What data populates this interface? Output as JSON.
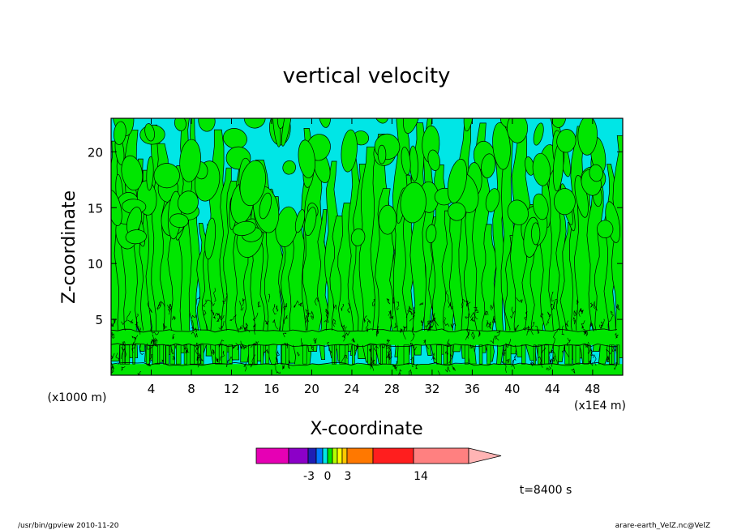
{
  "chart_data": {
    "type": "heatmap",
    "title": "vertical velocity",
    "xlabel": "X-coordinate",
    "ylabel": "Z-coordinate",
    "x_unit_left": "(x1000 m)",
    "x_unit_right": "(x1E4 m)",
    "xlim": [
      0,
      51
    ],
    "ylim": [
      0,
      23
    ],
    "x_ticks": [
      4,
      8,
      12,
      16,
      20,
      24,
      28,
      32,
      36,
      40,
      44,
      48
    ],
    "y_ticks": [
      5,
      10,
      15,
      20
    ],
    "x_tick_labels": [
      "4",
      "8",
      "12",
      "16",
      "20",
      "24",
      "28",
      "32",
      "36",
      "40",
      "44",
      "48"
    ],
    "y_tick_labels": [
      "5",
      "10",
      "15",
      "20"
    ],
    "contour_fill_colors": {
      "weak_negative": "#00e6e6",
      "weak_positive": "#00e600",
      "contour_line": "#000000"
    },
    "colorbar": {
      "colors": [
        "#e600b4",
        "#8c00c8",
        "#1e1eb4",
        "#0078ff",
        "#00e6e6",
        "#00e600",
        "#b4ff00",
        "#ffff00",
        "#ffc800",
        "#ff7800",
        "#ff1e1e",
        "#ff8080",
        "#ffb4b4"
      ],
      "tick_labels": [
        "-3",
        "0",
        "3",
        "14"
      ]
    },
    "time_label": "t=8400 s",
    "footer_left": "/usr/bin/gpview   2010-11-20",
    "footer_right": "arare-earth_VelZ.nc@VelZ"
  }
}
